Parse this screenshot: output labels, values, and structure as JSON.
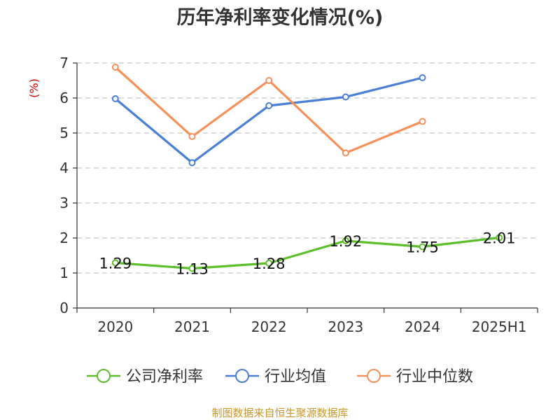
{
  "chart_data": {
    "type": "line",
    "title": "历年净利率变化情况(%)",
    "ylabel": "(%)",
    "xlabel": "",
    "categories": [
      "2020",
      "2021",
      "2022",
      "2023",
      "2024",
      "2025H1"
    ],
    "ylim": [
      0,
      7
    ],
    "yticks": [
      "0",
      "1",
      "2",
      "3",
      "4",
      "5",
      "6",
      "7"
    ],
    "grid": true,
    "legend_position": "bottom",
    "series": [
      {
        "name": "公司净利率",
        "color": "#5cbf2a",
        "values": [
          1.29,
          1.13,
          1.28,
          1.92,
          1.75,
          2.01
        ],
        "labels": [
          "1.29",
          "1.13",
          "1.28",
          "1.92",
          "1.75",
          "2.01"
        ]
      },
      {
        "name": "行业均值",
        "color": "#4a7fd6",
        "values": [
          5.98,
          4.15,
          5.78,
          6.03,
          6.58,
          null
        ]
      },
      {
        "name": "行业中位数",
        "color": "#f5905a",
        "values": [
          6.88,
          4.9,
          6.5,
          4.43,
          5.33,
          null
        ]
      }
    ],
    "source": "制图数据来自恒生聚源数据库"
  }
}
